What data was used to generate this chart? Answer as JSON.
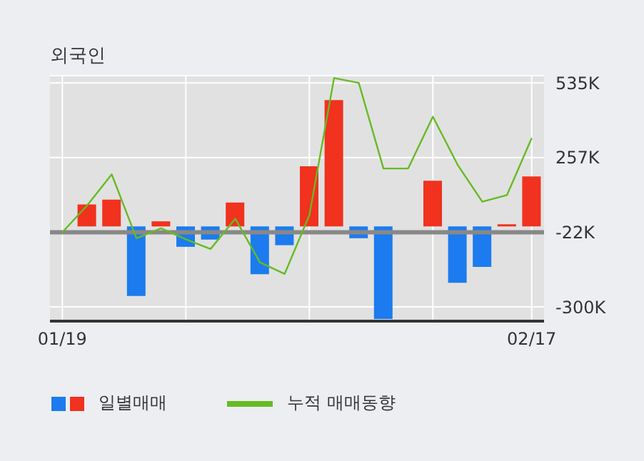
{
  "chart_data": {
    "type": "bar",
    "title": "외국인",
    "categories": [
      "01/19",
      null,
      null,
      null,
      null,
      null,
      null,
      null,
      null,
      null,
      null,
      null,
      null,
      null,
      null,
      null,
      null,
      null,
      null,
      "02/17"
    ],
    "series": [
      {
        "name": "일별매매",
        "values": [
          null,
          82000,
          100000,
          -259000,
          19000,
          -76000,
          -49000,
          89000,
          -178000,
          -70000,
          224000,
          471000,
          -44000,
          -345000,
          null,
          170000,
          -210000,
          -151000,
          8000,
          186000
        ],
        "colors": [
          "#f0321e",
          "#f0321e",
          "#f0321e",
          "#1c7bef",
          "#f0321e",
          "#1c7bef",
          "#1c7bef",
          "#f0321e",
          "#1c7bef",
          "#1c7bef",
          "#f0321e",
          "#f0321e",
          "#1c7bef",
          "#1c7bef",
          "#f0321e",
          "#f0321e",
          "#1c7bef",
          "#1c7bef",
          "#f0321e",
          "#f0321e"
        ]
      },
      {
        "name": "누적 매매동향",
        "type": "line",
        "color": "#66bb22",
        "values": [
          -22000,
          78000,
          194000,
          -44000,
          -7000,
          -48000,
          -84000,
          29000,
          -134000,
          -177000,
          42000,
          553000,
          535000,
          216000,
          216000,
          409000,
          230000,
          92000,
          117000,
          329000
        ]
      }
    ],
    "ylim": [
      -353000,
      562000
    ],
    "yticks": [
      {
        "value": 535000,
        "label": "535K"
      },
      {
        "value": 257000,
        "label": "257K"
      },
      {
        "value": -22000,
        "label": "-22K"
      },
      {
        "value": -300000,
        "label": "-300K"
      }
    ],
    "ref_lines": [
      {
        "axis": "y",
        "value": -22000,
        "color": "#888888"
      }
    ],
    "grid": true,
    "legend": "bottom",
    "marker": "none"
  }
}
